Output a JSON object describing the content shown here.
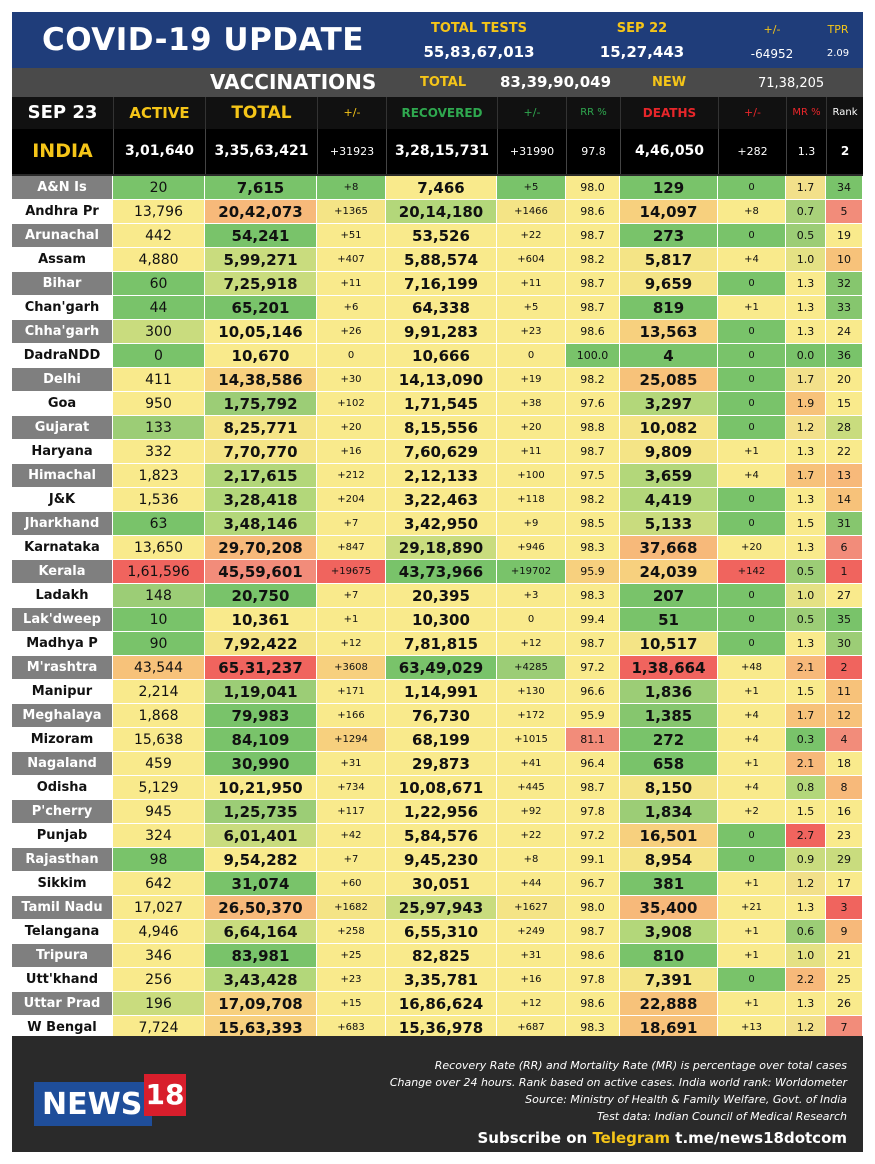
{
  "header": {
    "title": "COVID-19 UPDATE",
    "total_tests_label": "TOTAL TESTS",
    "total_tests_value": "55,83,67,013",
    "date_label": "SEP 22",
    "date_value": "15,27,443",
    "change_label": "+/-",
    "change_value": "-64952",
    "tpr_label": "TPR",
    "tpr_value": "2.09"
  },
  "vaccinations": {
    "title": "VACCINATIONS",
    "total_label": "TOTAL",
    "total_value": "83,39,90,049",
    "new_label": "NEW",
    "new_value": "71,38,205"
  },
  "columns": {
    "date": "SEP 23",
    "active": "ACTIVE",
    "total": "TOTAL",
    "total_change": "+/-",
    "recovered": "RECOVERED",
    "recovered_change": "+/-",
    "rr": "RR %",
    "deaths": "DEATHS",
    "deaths_change": "+/-",
    "mr": "MR %",
    "rank": "Rank"
  },
  "india": {
    "name": "INDIA",
    "active": "3,01,640",
    "total": "3,35,63,421",
    "total_change": "+31923",
    "recovered": "3,28,15,731",
    "recovered_change": "+31990",
    "rr": "97.8",
    "deaths": "4,46,050",
    "deaths_change": "+282",
    "mr": "1.3",
    "rank": "2"
  },
  "colors": {
    "header_blue": "#1f3d7a",
    "accent_yellow": "#f5c518",
    "recovered_green": "#2fa84f",
    "deaths_red": "#e8262a",
    "state_cell_gray": "#7f7f7f",
    "state_cell_white": "#ffffff"
  },
  "states": [
    {
      "name": "A&N Is",
      "active": "20",
      "total": "7,615",
      "tc": "+8",
      "recovered": "7,466",
      "rc": "+5",
      "rr": "98.0",
      "deaths": "129",
      "dc": "0",
      "mr": "1.7",
      "rank": "34",
      "colors": [
        "#79c36a",
        "#79c36a",
        "#79c36a",
        "#f9ea8c",
        "#79c36a",
        "#f9ea8c",
        "#79c36a",
        "#79c36a",
        "#f2e08a",
        "#79c36a"
      ]
    },
    {
      "name": "Andhra Pr",
      "active": "13,796",
      "total": "20,42,073",
      "tc": "+1365",
      "recovered": "20,14,180",
      "rc": "+1466",
      "rr": "98.6",
      "deaths": "14,097",
      "dc": "+8",
      "mr": "0.7",
      "rank": "5",
      "colors": [
        "#f9ea8c",
        "#f7b97a",
        "#f4e486",
        "#b3d77a",
        "#f4e486",
        "#f9ea8c",
        "#f7d07e",
        "#f9ea8c",
        "#a9d17a",
        "#f28c7a"
      ]
    },
    {
      "name": "Arunachal",
      "active": "442",
      "total": "54,241",
      "tc": "+51",
      "recovered": "53,526",
      "rc": "+22",
      "rr": "98.7",
      "deaths": "273",
      "dc": "0",
      "mr": "0.5",
      "rank": "19",
      "colors": [
        "#f9ea8c",
        "#79c36a",
        "#f9ea8c",
        "#f9ea8c",
        "#f9ea8c",
        "#f9ea8c",
        "#79c36a",
        "#79c36a",
        "#9ccd76",
        "#f9ea8c"
      ]
    },
    {
      "name": "Assam",
      "active": "4,880",
      "total": "5,99,271",
      "tc": "+407",
      "recovered": "5,88,574",
      "rc": "+604",
      "rr": "98.2",
      "deaths": "5,817",
      "dc": "+4",
      "mr": "1.0",
      "rank": "10",
      "colors": [
        "#f9ea8c",
        "#c9dc7e",
        "#f9ea8c",
        "#f9ea8c",
        "#f9ea8c",
        "#f9ea8c",
        "#f4e486",
        "#f9ea8c",
        "#e4e184",
        "#f7c27a"
      ]
    },
    {
      "name": "Bihar",
      "active": "60",
      "total": "7,25,918",
      "tc": "+11",
      "recovered": "7,16,199",
      "rc": "+11",
      "rr": "98.7",
      "deaths": "9,659",
      "dc": "0",
      "mr": "1.3",
      "rank": "32",
      "colors": [
        "#79c36a",
        "#c9dc7e",
        "#f9ea8c",
        "#f9ea8c",
        "#f9ea8c",
        "#f9ea8c",
        "#f4e486",
        "#79c36a",
        "#f9ea8c",
        "#86c66e"
      ]
    },
    {
      "name": "Chan'garh",
      "active": "44",
      "total": "65,201",
      "tc": "+6",
      "recovered": "64,338",
      "rc": "+5",
      "rr": "98.7",
      "deaths": "819",
      "dc": "+1",
      "mr": "1.3",
      "rank": "33",
      "colors": [
        "#79c36a",
        "#79c36a",
        "#f9ea8c",
        "#f9ea8c",
        "#f9ea8c",
        "#f9ea8c",
        "#79c36a",
        "#f9ea8c",
        "#f9ea8c",
        "#86c66e"
      ]
    },
    {
      "name": "Chha'garh",
      "active": "300",
      "total": "10,05,146",
      "tc": "+26",
      "recovered": "9,91,283",
      "rc": "+23",
      "rr": "98.6",
      "deaths": "13,563",
      "dc": "0",
      "mr": "1.3",
      "rank": "24",
      "colors": [
        "#c9dc7e",
        "#f9ea8c",
        "#f9ea8c",
        "#f9ea8c",
        "#f9ea8c",
        "#f9ea8c",
        "#f7d07e",
        "#79c36a",
        "#f9ea8c",
        "#f9ea8c"
      ]
    },
    {
      "name": "DadraNDD",
      "active": "0",
      "total": "10,670",
      "tc": "0",
      "recovered": "10,666",
      "rc": "0",
      "rr": "100.0",
      "deaths": "4",
      "dc": "0",
      "mr": "0.0",
      "rank": "36",
      "colors": [
        "#79c36a",
        "#f9ea8c",
        "#f9ea8c",
        "#f9ea8c",
        "#f9ea8c",
        "#79c36a",
        "#79c36a",
        "#79c36a",
        "#79c36a",
        "#79c36a"
      ]
    },
    {
      "name": "Delhi",
      "active": "411",
      "total": "14,38,586",
      "tc": "+30",
      "recovered": "14,13,090",
      "rc": "+19",
      "rr": "98.2",
      "deaths": "25,085",
      "dc": "0",
      "mr": "1.7",
      "rank": "20",
      "colors": [
        "#f9ea8c",
        "#f7d07e",
        "#f9ea8c",
        "#f9ea8c",
        "#f9ea8c",
        "#f9ea8c",
        "#f7c27a",
        "#79c36a",
        "#f2e08a",
        "#f9ea8c"
      ]
    },
    {
      "name": "Goa",
      "active": "950",
      "total": "1,75,792",
      "tc": "+102",
      "recovered": "1,71,545",
      "rc": "+38",
      "rr": "97.6",
      "deaths": "3,297",
      "dc": "0",
      "mr": "1.9",
      "rank": "15",
      "colors": [
        "#f9ea8c",
        "#9ccd76",
        "#f9ea8c",
        "#f9ea8c",
        "#f9ea8c",
        "#f9ea8c",
        "#b3d77a",
        "#79c36a",
        "#f7c27a",
        "#f9ea8c"
      ]
    },
    {
      "name": "Gujarat",
      "active": "133",
      "total": "8,25,771",
      "tc": "+20",
      "recovered": "8,15,556",
      "rc": "+20",
      "rr": "98.8",
      "deaths": "10,082",
      "dc": "0",
      "mr": "1.2",
      "rank": "28",
      "colors": [
        "#9ccd76",
        "#f4e486",
        "#f9ea8c",
        "#f9ea8c",
        "#f9ea8c",
        "#f9ea8c",
        "#f4e486",
        "#79c36a",
        "#f2e08a",
        "#c9dc7e"
      ]
    },
    {
      "name": "Haryana",
      "active": "332",
      "total": "7,70,770",
      "tc": "+16",
      "recovered": "7,60,629",
      "rc": "+11",
      "rr": "98.7",
      "deaths": "9,809",
      "dc": "+1",
      "mr": "1.3",
      "rank": "22",
      "colors": [
        "#f9ea8c",
        "#f4e486",
        "#f9ea8c",
        "#f9ea8c",
        "#f9ea8c",
        "#f9ea8c",
        "#f4e486",
        "#f9ea8c",
        "#f9ea8c",
        "#f9ea8c"
      ]
    },
    {
      "name": "Himachal",
      "active": "1,823",
      "total": "2,17,615",
      "tc": "+212",
      "recovered": "2,12,133",
      "rc": "+100",
      "rr": "97.5",
      "deaths": "3,659",
      "dc": "+4",
      "mr": "1.7",
      "rank": "13",
      "colors": [
        "#f9ea8c",
        "#b3d77a",
        "#f9ea8c",
        "#f9ea8c",
        "#f9ea8c",
        "#f9ea8c",
        "#b3d77a",
        "#f9ea8c",
        "#f7c27a",
        "#f7b97a"
      ]
    },
    {
      "name": "J&K",
      "active": "1,536",
      "total": "3,28,418",
      "tc": "+204",
      "recovered": "3,22,463",
      "rc": "+118",
      "rr": "98.2",
      "deaths": "4,419",
      "dc": "0",
      "mr": "1.3",
      "rank": "14",
      "colors": [
        "#f9ea8c",
        "#b3d77a",
        "#f9ea8c",
        "#f9ea8c",
        "#f9ea8c",
        "#f9ea8c",
        "#b3d77a",
        "#79c36a",
        "#f9ea8c",
        "#f7c27a"
      ]
    },
    {
      "name": "Jharkhand",
      "active": "63",
      "total": "3,48,146",
      "tc": "+7",
      "recovered": "3,42,950",
      "rc": "+9",
      "rr": "98.5",
      "deaths": "5,133",
      "dc": "0",
      "mr": "1.5",
      "rank": "31",
      "colors": [
        "#79c36a",
        "#b3d77a",
        "#f9ea8c",
        "#f9ea8c",
        "#f9ea8c",
        "#f9ea8c",
        "#c9dc7e",
        "#79c36a",
        "#f9ea8c",
        "#86c66e"
      ]
    },
    {
      "name": "Karnataka",
      "active": "13,650",
      "total": "29,70,208",
      "tc": "+847",
      "recovered": "29,18,890",
      "rc": "+946",
      "rr": "98.3",
      "deaths": "37,668",
      "dc": "+20",
      "mr": "1.3",
      "rank": "6",
      "colors": [
        "#f9ea8c",
        "#f7b97a",
        "#f9ea8c",
        "#c9dc7e",
        "#f9ea8c",
        "#f9ea8c",
        "#f7b97a",
        "#f9ea8c",
        "#f9ea8c",
        "#f28c7a"
      ]
    },
    {
      "name": "Kerala",
      "active": "1,61,596",
      "total": "45,59,601",
      "tc": "+19675",
      "recovered": "43,73,966",
      "rc": "+19702",
      "rr": "95.9",
      "deaths": "24,039",
      "dc": "+142",
      "mr": "0.5",
      "rank": "1",
      "colors": [
        "#f0645e",
        "#f28c7a",
        "#f0645e",
        "#79c36a",
        "#79c36a",
        "#f7d07e",
        "#f7d07e",
        "#f0645e",
        "#9ccd76",
        "#f0645e"
      ]
    },
    {
      "name": "Ladakh",
      "active": "148",
      "total": "20,750",
      "tc": "+7",
      "recovered": "20,395",
      "rc": "+3",
      "rr": "98.3",
      "deaths": "207",
      "dc": "0",
      "mr": "1.0",
      "rank": "27",
      "colors": [
        "#9ccd76",
        "#79c36a",
        "#f9ea8c",
        "#f9ea8c",
        "#f9ea8c",
        "#f9ea8c",
        "#79c36a",
        "#79c36a",
        "#e4e184",
        "#f9ea8c"
      ]
    },
    {
      "name": "Lak'dweep",
      "active": "10",
      "total": "10,361",
      "tc": "+1",
      "recovered": "10,300",
      "rc": "0",
      "rr": "99.4",
      "deaths": "51",
      "dc": "0",
      "mr": "0.5",
      "rank": "35",
      "colors": [
        "#79c36a",
        "#f9ea8c",
        "#f9ea8c",
        "#f9ea8c",
        "#f9ea8c",
        "#f9ea8c",
        "#79c36a",
        "#79c36a",
        "#9ccd76",
        "#79c36a"
      ]
    },
    {
      "name": "Madhya P",
      "active": "90",
      "total": "7,92,422",
      "tc": "+12",
      "recovered": "7,81,815",
      "rc": "+12",
      "rr": "98.7",
      "deaths": "10,517",
      "dc": "0",
      "mr": "1.3",
      "rank": "30",
      "colors": [
        "#79c36a",
        "#f4e486",
        "#f9ea8c",
        "#f9ea8c",
        "#f9ea8c",
        "#f9ea8c",
        "#f4e486",
        "#79c36a",
        "#f9ea8c",
        "#9ccd76"
      ]
    },
    {
      "name": "M'rashtra",
      "active": "43,544",
      "total": "65,31,237",
      "tc": "+3608",
      "recovered": "63,49,029",
      "rc": "+4285",
      "rr": "97.2",
      "deaths": "1,38,664",
      "dc": "+48",
      "mr": "2.1",
      "rank": "2",
      "colors": [
        "#f7c27a",
        "#f0645e",
        "#f7d07e",
        "#79c36a",
        "#9ccd76",
        "#f9ea8c",
        "#f0645e",
        "#f9ea8c",
        "#f7b97a",
        "#f0645e"
      ]
    },
    {
      "name": "Manipur",
      "active": "2,214",
      "total": "1,19,041",
      "tc": "+171",
      "recovered": "1,14,991",
      "rc": "+130",
      "rr": "96.6",
      "deaths": "1,836",
      "dc": "+1",
      "mr": "1.5",
      "rank": "11",
      "colors": [
        "#f9ea8c",
        "#9ccd76",
        "#f9ea8c",
        "#f9ea8c",
        "#f9ea8c",
        "#f9ea8c",
        "#9ccd76",
        "#f9ea8c",
        "#f9ea8c",
        "#f7c27a"
      ]
    },
    {
      "name": "Meghalaya",
      "active": "1,868",
      "total": "79,983",
      "tc": "+166",
      "recovered": "76,730",
      "rc": "+172",
      "rr": "95.9",
      "deaths": "1,385",
      "dc": "+4",
      "mr": "1.7",
      "rank": "12",
      "colors": [
        "#f9ea8c",
        "#79c36a",
        "#f9ea8c",
        "#f9ea8c",
        "#f9ea8c",
        "#f9ea8c",
        "#86c66e",
        "#f9ea8c",
        "#f7c27a",
        "#f7c27a"
      ]
    },
    {
      "name": "Mizoram",
      "active": "15,638",
      "total": "84,109",
      "tc": "+1294",
      "recovered": "68,199",
      "rc": "+1015",
      "rr": "81.1",
      "deaths": "272",
      "dc": "+4",
      "mr": "0.3",
      "rank": "4",
      "colors": [
        "#f9ea8c",
        "#79c36a",
        "#f7d07e",
        "#f9ea8c",
        "#f9ea8c",
        "#f28c7a",
        "#79c36a",
        "#f9ea8c",
        "#79c36a",
        "#f28c7a"
      ]
    },
    {
      "name": "Nagaland",
      "active": "459",
      "total": "30,990",
      "tc": "+31",
      "recovered": "29,873",
      "rc": "+41",
      "rr": "96.4",
      "deaths": "658",
      "dc": "+1",
      "mr": "2.1",
      "rank": "18",
      "colors": [
        "#f9ea8c",
        "#79c36a",
        "#f9ea8c",
        "#f9ea8c",
        "#f9ea8c",
        "#f9ea8c",
        "#79c36a",
        "#f9ea8c",
        "#f7b97a",
        "#f9ea8c"
      ]
    },
    {
      "name": "Odisha",
      "active": "5,129",
      "total": "10,21,950",
      "tc": "+734",
      "recovered": "10,08,671",
      "rc": "+445",
      "rr": "98.7",
      "deaths": "8,150",
      "dc": "+4",
      "mr": "0.8",
      "rank": "8",
      "colors": [
        "#f9ea8c",
        "#f9ea8c",
        "#f9ea8c",
        "#f9ea8c",
        "#f9ea8c",
        "#f9ea8c",
        "#f4e486",
        "#f9ea8c",
        "#b3d77a",
        "#f7b97a"
      ]
    },
    {
      "name": "P'cherry",
      "active": "945",
      "total": "1,25,735",
      "tc": "+117",
      "recovered": "1,22,956",
      "rc": "+92",
      "rr": "97.8",
      "deaths": "1,834",
      "dc": "+2",
      "mr": "1.5",
      "rank": "16",
      "colors": [
        "#f9ea8c",
        "#9ccd76",
        "#f9ea8c",
        "#f9ea8c",
        "#f9ea8c",
        "#f9ea8c",
        "#9ccd76",
        "#f9ea8c",
        "#f9ea8c",
        "#f9ea8c"
      ]
    },
    {
      "name": "Punjab",
      "active": "324",
      "total": "6,01,401",
      "tc": "+42",
      "recovered": "5,84,576",
      "rc": "+22",
      "rr": "97.2",
      "deaths": "16,501",
      "dc": "0",
      "mr": "2.7",
      "rank": "23",
      "colors": [
        "#f9ea8c",
        "#c9dc7e",
        "#f9ea8c",
        "#f9ea8c",
        "#f9ea8c",
        "#f9ea8c",
        "#f7d07e",
        "#79c36a",
        "#f0645e",
        "#f9ea8c"
      ]
    },
    {
      "name": "Rajasthan",
      "active": "98",
      "total": "9,54,282",
      "tc": "+7",
      "recovered": "9,45,230",
      "rc": "+8",
      "rr": "99.1",
      "deaths": "8,954",
      "dc": "0",
      "mr": "0.9",
      "rank": "29",
      "colors": [
        "#79c36a",
        "#f9ea8c",
        "#f9ea8c",
        "#f9ea8c",
        "#f9ea8c",
        "#f9ea8c",
        "#f4e486",
        "#79c36a",
        "#c9dc7e",
        "#c9dc7e"
      ]
    },
    {
      "name": "Sikkim",
      "active": "642",
      "total": "31,074",
      "tc": "+60",
      "recovered": "30,051",
      "rc": "+44",
      "rr": "96.7",
      "deaths": "381",
      "dc": "+1",
      "mr": "1.2",
      "rank": "17",
      "colors": [
        "#f9ea8c",
        "#79c36a",
        "#f9ea8c",
        "#f9ea8c",
        "#f9ea8c",
        "#f9ea8c",
        "#79c36a",
        "#f9ea8c",
        "#f2e08a",
        "#f9ea8c"
      ]
    },
    {
      "name": "Tamil Nadu",
      "active": "17,027",
      "total": "26,50,370",
      "tc": "+1682",
      "recovered": "25,97,943",
      "rc": "+1627",
      "rr": "98.0",
      "deaths": "35,400",
      "dc": "+21",
      "mr": "1.3",
      "rank": "3",
      "colors": [
        "#f9ea8c",
        "#f7b97a",
        "#f4e486",
        "#c9dc7e",
        "#f4e486",
        "#f9ea8c",
        "#f7b97a",
        "#f9ea8c",
        "#f9ea8c",
        "#f0645e"
      ]
    },
    {
      "name": "Telangana",
      "active": "4,946",
      "total": "6,64,164",
      "tc": "+258",
      "recovered": "6,55,310",
      "rc": "+249",
      "rr": "98.7",
      "deaths": "3,908",
      "dc": "+1",
      "mr": "0.6",
      "rank": "9",
      "colors": [
        "#f9ea8c",
        "#c9dc7e",
        "#f9ea8c",
        "#f9ea8c",
        "#f9ea8c",
        "#f9ea8c",
        "#b3d77a",
        "#f9ea8c",
        "#9ccd76",
        "#f7b97a"
      ]
    },
    {
      "name": "Tripura",
      "active": "346",
      "total": "83,981",
      "tc": "+25",
      "recovered": "82,825",
      "rc": "+31",
      "rr": "98.6",
      "deaths": "810",
      "dc": "+1",
      "mr": "1.0",
      "rank": "21",
      "colors": [
        "#f9ea8c",
        "#79c36a",
        "#f9ea8c",
        "#f9ea8c",
        "#f9ea8c",
        "#f9ea8c",
        "#79c36a",
        "#f9ea8c",
        "#e4e184",
        "#f9ea8c"
      ]
    },
    {
      "name": "Utt'khand",
      "active": "256",
      "total": "3,43,428",
      "tc": "+23",
      "recovered": "3,35,781",
      "rc": "+16",
      "rr": "97.8",
      "deaths": "7,391",
      "dc": "0",
      "mr": "2.2",
      "rank": "25",
      "colors": [
        "#f9ea8c",
        "#b3d77a",
        "#f9ea8c",
        "#f9ea8c",
        "#f9ea8c",
        "#f9ea8c",
        "#f4e486",
        "#79c36a",
        "#f7b97a",
        "#f9ea8c"
      ]
    },
    {
      "name": "Uttar Prad",
      "active": "196",
      "total": "17,09,708",
      "tc": "+15",
      "recovered": "16,86,624",
      "rc": "+12",
      "rr": "98.6",
      "deaths": "22,888",
      "dc": "+1",
      "mr": "1.3",
      "rank": "26",
      "colors": [
        "#c9dc7e",
        "#f7d07e",
        "#f9ea8c",
        "#f9ea8c",
        "#f9ea8c",
        "#f9ea8c",
        "#f7c27a",
        "#f9ea8c",
        "#f9ea8c",
        "#f9ea8c"
      ]
    },
    {
      "name": "W Bengal",
      "active": "7,724",
      "total": "15,63,393",
      "tc": "+683",
      "recovered": "15,36,978",
      "rc": "+687",
      "rr": "98.3",
      "deaths": "18,691",
      "dc": "+13",
      "mr": "1.2",
      "rank": "7",
      "colors": [
        "#f9ea8c",
        "#f7d07e",
        "#f9ea8c",
        "#f9ea8c",
        "#f9ea8c",
        "#f9ea8c",
        "#f7c27a",
        "#f9ea8c",
        "#f2e08a",
        "#f28c7a"
      ]
    }
  ],
  "footer": {
    "notes": [
      "Recovery Rate (RR) and Mortality Rate (MR) is percentage over total cases",
      "Change over 24 hours. Rank based on active cases. India world rank: Worldometer",
      "Source: Ministry of Health & Family Welfare, Govt. of India",
      "Test data: Indian Council of Medical Research"
    ],
    "subscribe_prefix": "Subscribe on",
    "subscribe_platform": "Telegram",
    "subscribe_link": "t.me/news18dotcom",
    "logo_text": "NEWS",
    "logo_number": "18"
  }
}
